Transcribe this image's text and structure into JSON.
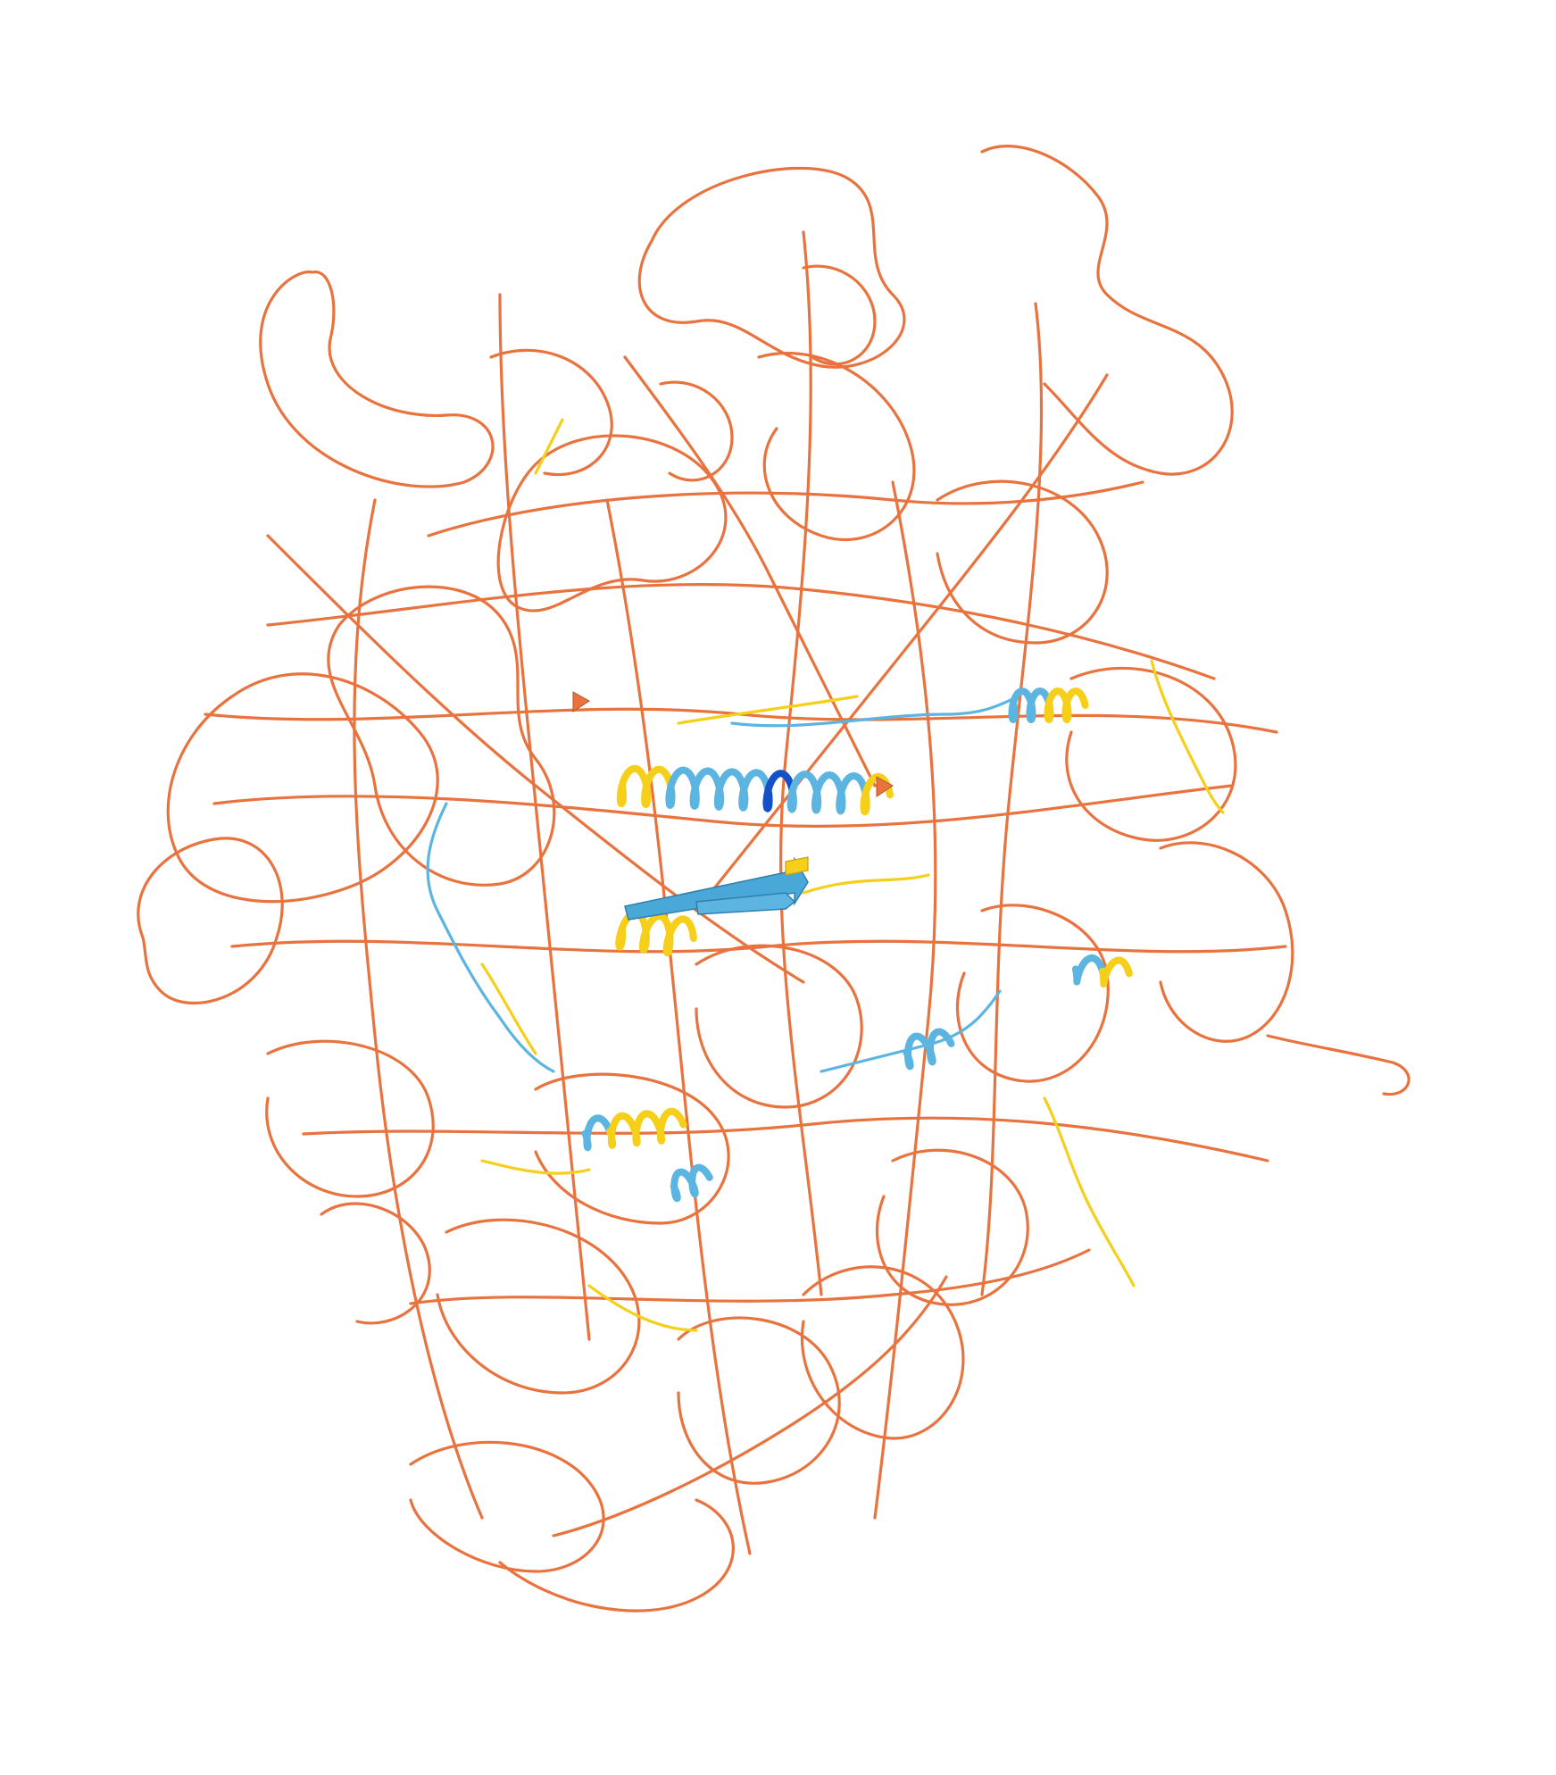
{
  "image": {
    "kind": "protein-structure-cartoon",
    "background": "#ffffff",
    "confidence_palette": {
      "very_low": "#e8733e",
      "low": "#f5cf1a",
      "confident": "#5bb5e0",
      "very_high": "#1450c8"
    },
    "outline_color": "#b85326",
    "elements": [
      "disordered-coil",
      "central-helix",
      "beta-strand-pair",
      "small-helices"
    ]
  }
}
